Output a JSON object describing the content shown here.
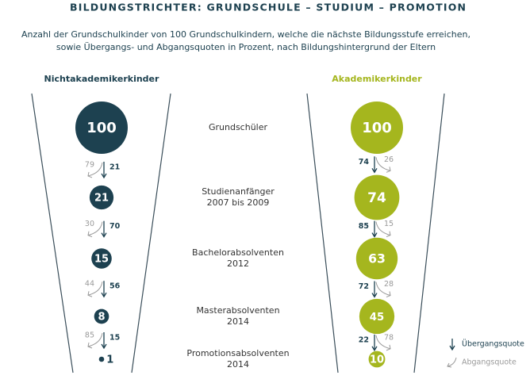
{
  "chart_data": {
    "type": "funnel",
    "title": "BILDUNGSTRICHTER: GRUNDSCHULE – STUDIUM – PROMOTION",
    "subtitle": [
      "Anzahl der Grundschulkinder von 100 Grundschulkindern, welche die nächste Bildungsstufe erreichen,",
      "sowie Übergangs- und Abgangsquoten in Prozent, nach Bildungshintergrund der Eltern"
    ],
    "categories": [
      [
        "Grundschüler"
      ],
      [
        "Studienanfänger",
        "2007 bis 2009"
      ],
      [
        "Bachelorabsolventen",
        "2012"
      ],
      [
        "Masterabsolventen",
        "2014"
      ],
      [
        "Promotionsabsolventen",
        "2014"
      ]
    ],
    "series": [
      {
        "name": "Nichtakademikerkinder",
        "color": "#1d4150",
        "values": [
          100,
          21,
          15,
          8,
          1
        ],
        "transition": [
          21,
          70,
          56,
          15
        ],
        "dropout": [
          79,
          30,
          44,
          85
        ]
      },
      {
        "name": "Akademikerkinder",
        "color": "#a5b61e",
        "values": [
          100,
          74,
          63,
          45,
          10
        ],
        "transition": [
          74,
          85,
          72,
          22
        ],
        "dropout": [
          26,
          15,
          28,
          78
        ]
      }
    ],
    "legend": {
      "transition": "Übergangsquote",
      "dropout": "Abgangsquote"
    }
  }
}
